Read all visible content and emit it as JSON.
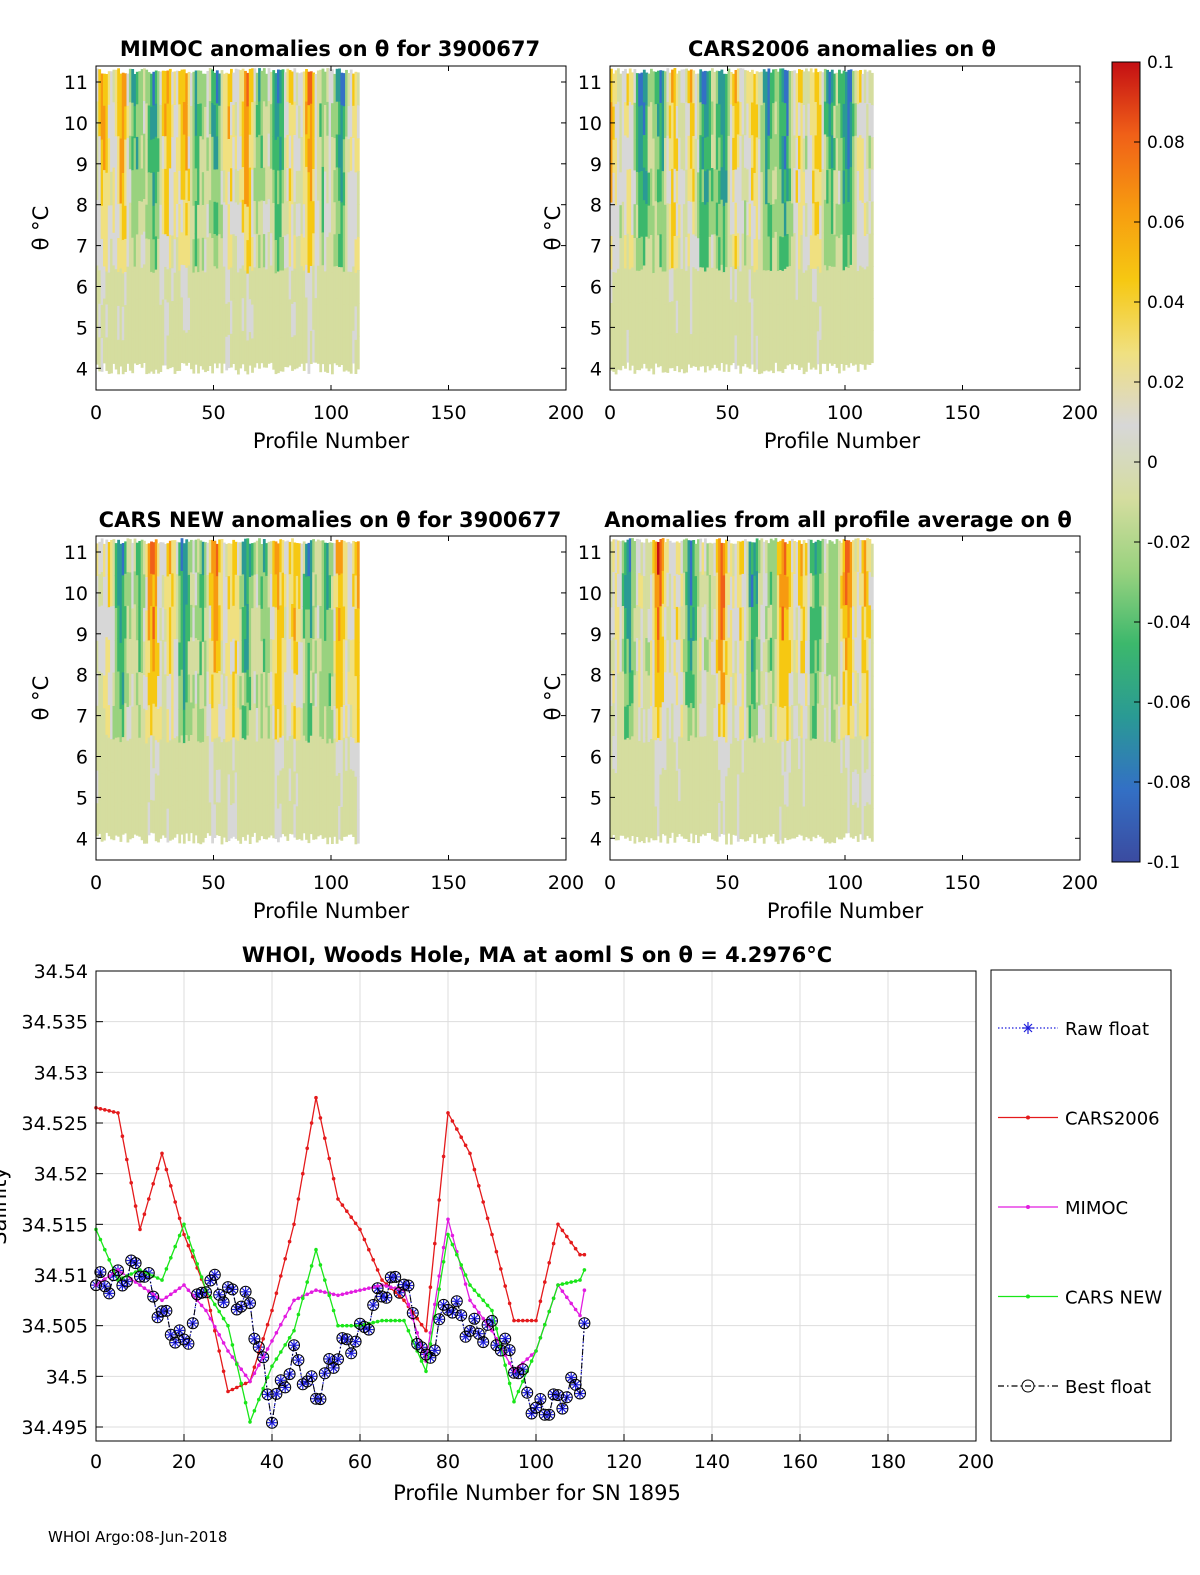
{
  "colors": {
    "raw": "#1f1fdc",
    "cars2006": "#e41a1c",
    "mimoc": "#e21ce0",
    "carsnew": "#19e619",
    "best": "#000000",
    "grid": "#dddddd"
  },
  "colorbar": {
    "ticks": [
      "0.1",
      "0.08",
      "0.06",
      "0.04",
      "0.02",
      "0",
      "-0.02",
      "-0.04",
      "-0.06",
      "-0.08",
      "-0.1"
    ],
    "stops": [
      "#3b4ba0",
      "#3370c5",
      "#2a9a94",
      "#3cb86c",
      "#99d27f",
      "#d5dd9f",
      "#d7d7d7",
      "#f0e080",
      "#f6c812",
      "#f79a10",
      "#f06018",
      "#c40f14"
    ]
  },
  "panels": [
    {
      "id": "mimoc",
      "title": "MIMOC anomalies on θ  for 3900677",
      "ylabel": "θ °C",
      "xlabel": "Profile Number",
      "yticks": [
        "11",
        "10",
        "9",
        "8",
        "7",
        "6",
        "5",
        "4"
      ],
      "xticks": [
        "0",
        "50",
        "100",
        "150",
        "200"
      ]
    },
    {
      "id": "cars2006",
      "title": "CARS2006 anomalies on θ",
      "ylabel": "θ °C",
      "xlabel": "Profile Number",
      "yticks": [
        "11",
        "10",
        "9",
        "8",
        "7",
        "6",
        "5",
        "4"
      ],
      "xticks": [
        "0",
        "50",
        "100",
        "150",
        "200"
      ]
    },
    {
      "id": "carsnew",
      "title": "CARS NEW anomalies on θ for 3900677",
      "ylabel": "θ °C",
      "xlabel": "Profile Number",
      "yticks": [
        "11",
        "10",
        "9",
        "8",
        "7",
        "6",
        "5",
        "4"
      ],
      "xticks": [
        "0",
        "50",
        "100",
        "150",
        "200"
      ]
    },
    {
      "id": "allprof",
      "title": "Anomalies from all profile average on θ",
      "ylabel": "θ °C",
      "xlabel": "Profile Number",
      "yticks": [
        "11",
        "10",
        "9",
        "8",
        "7",
        "6",
        "5",
        "4"
      ],
      "xticks": [
        "0",
        "50",
        "100",
        "150",
        "200"
      ]
    }
  ],
  "chart_data": {
    "type": "line",
    "title": "WHOI, Woods Hole, MA at aoml S on θ = 4.2976°C",
    "xlabel": "Profile Number for SN 1895",
    "ylabel": "Salinity",
    "xlim": [
      0,
      200
    ],
    "ylim": [
      34.495,
      34.54
    ],
    "xticks": [
      "0",
      "20",
      "40",
      "60",
      "80",
      "100",
      "120",
      "140",
      "160",
      "180",
      "200"
    ],
    "yticks": [
      "34.54",
      "34.535",
      "34.53",
      "34.525",
      "34.52",
      "34.515",
      "34.51",
      "34.505",
      "34.5",
      "34.495"
    ],
    "x": [
      0,
      5,
      10,
      15,
      20,
      25,
      30,
      35,
      40,
      45,
      50,
      55,
      60,
      65,
      70,
      75,
      80,
      85,
      90,
      95,
      100,
      105,
      110,
      111
    ],
    "series": [
      {
        "name": "Raw float",
        "values": [
          34.509,
          34.5095,
          34.511,
          34.506,
          34.503,
          34.5095,
          34.508,
          34.507,
          34.4965,
          34.502,
          34.498,
          34.5025,
          34.504,
          34.5085,
          34.5095,
          34.501,
          34.5075,
          34.5045,
          34.5045,
          34.5015,
          34.4965,
          34.4975,
          34.4995,
          34.505
        ]
      },
      {
        "name": "CARS2006",
        "values": [
          34.5265,
          34.526,
          34.5145,
          34.522,
          34.514,
          34.5085,
          34.4985,
          34.4995,
          34.5065,
          34.515,
          34.5275,
          34.5175,
          34.5145,
          34.5095,
          34.5075,
          34.5045,
          34.526,
          34.522,
          34.514,
          34.5055,
          34.5055,
          34.515,
          34.512,
          34.512
        ]
      },
      {
        "name": "MIMOC",
        "values": [
          34.509,
          34.5105,
          34.509,
          34.5075,
          34.509,
          34.5065,
          34.5025,
          34.4995,
          34.5035,
          34.5075,
          34.5085,
          34.508,
          34.5085,
          34.509,
          34.5085,
          34.5015,
          34.5155,
          34.5075,
          34.5045,
          34.5005,
          34.5025,
          34.509,
          34.506,
          34.5085
        ]
      },
      {
        "name": "CARS NEW",
        "values": [
          34.5145,
          34.5095,
          34.5105,
          34.5095,
          34.515,
          34.5085,
          34.505,
          34.4955,
          34.501,
          34.5045,
          34.5125,
          34.505,
          34.505,
          34.5055,
          34.5055,
          34.5005,
          34.514,
          34.509,
          34.5065,
          34.4975,
          34.5025,
          34.509,
          34.5095,
          34.5105
        ]
      },
      {
        "name": "Best float",
        "values": [
          34.509,
          34.5095,
          34.511,
          34.506,
          34.503,
          34.5095,
          34.508,
          34.507,
          34.4965,
          34.502,
          34.498,
          34.5025,
          34.504,
          34.5085,
          34.5095,
          34.501,
          34.5075,
          34.5045,
          34.5045,
          34.5015,
          34.4965,
          34.4975,
          34.4995,
          34.505
        ]
      }
    ],
    "legend": [
      "Raw float",
      "CARS2006",
      "MIMOC",
      "CARS NEW",
      "Best float"
    ]
  },
  "footer": "WHOI Argo:08-Jun-2018"
}
